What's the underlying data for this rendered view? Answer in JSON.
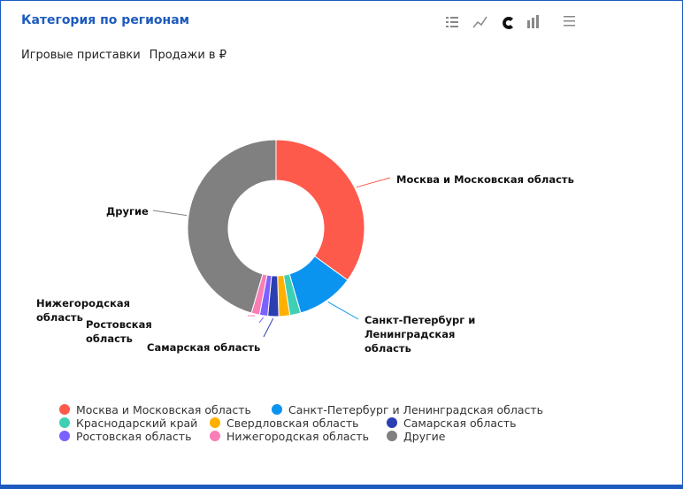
{
  "header": {
    "title": "Категория по регионам",
    "subtitle": [
      "Игровые приставки",
      "Продажи в ₽"
    ]
  },
  "chart_data": {
    "type": "pie",
    "donut": true,
    "categories": [
      "Москва и Московская область",
      "Санкт-Петербург и Ленинградская область",
      "Краснодарский край",
      "Свердловская область",
      "Самарская область",
      "Ростовская область",
      "Нижегородская область",
      "Другие"
    ],
    "values": [
      35,
      10.5,
      2,
      2,
      2,
      1.5,
      1.5,
      45.5
    ],
    "colors": [
      "#fd5a4b",
      "#0a94f0",
      "#3fd0b3",
      "#ffb000",
      "#2b3fb2",
      "#7b61ff",
      "#f97db6",
      "#808080"
    ]
  }
}
